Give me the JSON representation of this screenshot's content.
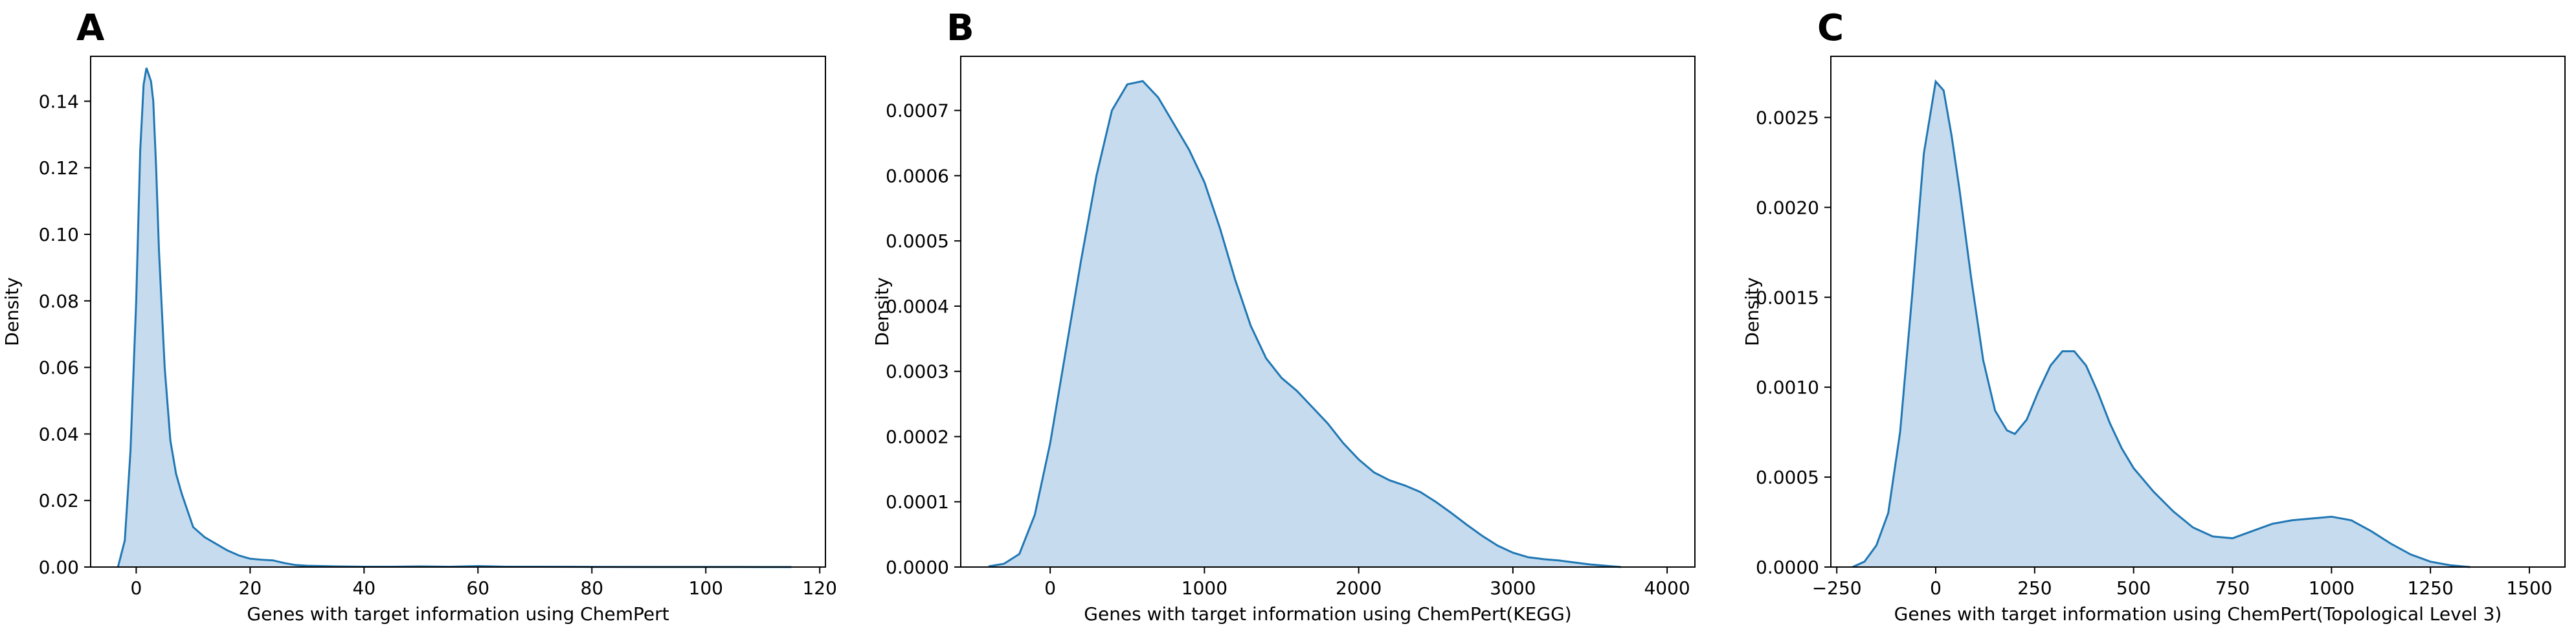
{
  "chart_data": [
    {
      "type": "area",
      "panel_label": "A",
      "title": "",
      "xlabel": "Genes with target information using ChemPert",
      "ylabel": "Density",
      "xlim": [
        -8,
        121
      ],
      "ylim": [
        0,
        0.1535
      ],
      "xticks": [
        0,
        20,
        40,
        60,
        80,
        100,
        120
      ],
      "xtick_labels": [
        "0",
        "20",
        "40",
        "60",
        "80",
        "100",
        "120"
      ],
      "yticks": [
        0,
        0.02,
        0.04,
        0.06,
        0.08,
        0.1,
        0.12,
        0.14
      ],
      "ytick_labels": [
        "0.00",
        "0.02",
        "0.04",
        "0.06",
        "0.08",
        "0.10",
        "0.12",
        "0.14"
      ],
      "grid": false,
      "legend": "none",
      "line_color": "#1f77b4",
      "fill_color": "#c6dbed",
      "series": [
        {
          "x": [
            -3.2,
            -2,
            -1,
            0,
            0.7,
            1.3,
            1.8,
            2.2,
            2.6,
            3,
            3.5,
            4,
            5,
            6,
            7,
            8,
            10,
            12,
            14,
            16,
            18,
            20,
            22,
            24,
            26,
            28,
            30,
            35,
            40,
            45,
            50,
            55,
            60,
            65,
            70,
            80,
            90,
            100,
            110,
            115
          ],
          "y": [
            0,
            0.008,
            0.035,
            0.08,
            0.125,
            0.145,
            0.15,
            0.148,
            0.146,
            0.14,
            0.12,
            0.095,
            0.06,
            0.038,
            0.028,
            0.022,
            0.012,
            0.009,
            0.007,
            0.005,
            0.0035,
            0.0025,
            0.0022,
            0.002,
            0.0012,
            0.0006,
            0.0004,
            0.0002,
            0.0001,
            0.0001,
            0.0002,
            0.0001,
            0.0003,
            0.0001,
            0.0001,
            5e-05,
            3e-05,
            2e-05,
            1e-05,
            0
          ]
        }
      ]
    },
    {
      "type": "area",
      "panel_label": "B",
      "title": "",
      "xlabel": "Genes with target information using ChemPert(KEGG)",
      "ylabel": "Density",
      "xlim": [
        -580,
        4180
      ],
      "ylim": [
        0,
        0.000783
      ],
      "xticks": [
        0,
        1000,
        2000,
        3000,
        4000
      ],
      "xtick_labels": [
        "0",
        "1000",
        "2000",
        "3000",
        "4000"
      ],
      "yticks": [
        0,
        0.0001,
        0.0002,
        0.0003,
        0.0004,
        0.0005,
        0.0006,
        0.0007
      ],
      "ytick_labels": [
        "0.0000",
        "0.0001",
        "0.0002",
        "0.0003",
        "0.0004",
        "0.0005",
        "0.0006",
        "0.0007"
      ],
      "grid": false,
      "legend": "none",
      "line_color": "#1f77b4",
      "fill_color": "#c6dbed",
      "series": [
        {
          "x": [
            -400,
            -300,
            -200,
            -100,
            0,
            100,
            200,
            300,
            400,
            500,
            600,
            700,
            800,
            900,
            1000,
            1100,
            1200,
            1300,
            1400,
            1500,
            1600,
            1700,
            1800,
            1900,
            2000,
            2100,
            2200,
            2300,
            2400,
            2500,
            2600,
            2700,
            2800,
            2900,
            3000,
            3100,
            3200,
            3300,
            3400,
            3500,
            3600,
            3700
          ],
          "y": [
            1e-06,
            5e-06,
            2e-05,
            8e-05,
            0.00019,
            0.00033,
            0.00047,
            0.0006,
            0.0007,
            0.00074,
            0.000745,
            0.00072,
            0.00068,
            0.00064,
            0.00059,
            0.00052,
            0.00044,
            0.00037,
            0.00032,
            0.00029,
            0.00027,
            0.000245,
            0.00022,
            0.00019,
            0.000165,
            0.000145,
            0.000133,
            0.000125,
            0.000115,
            0.0001,
            8.3e-05,
            6.5e-05,
            4.8e-05,
            3.3e-05,
            2.2e-05,
            1.5e-05,
            1.2e-05,
            1e-05,
            7e-06,
            4e-06,
            2e-06,
            0
          ]
        }
      ]
    },
    {
      "type": "area",
      "panel_label": "C",
      "title": "",
      "xlabel": "Genes with target information using ChemPert(Topological Level 3)",
      "ylabel": "Density",
      "xlim": [
        -265,
        1590
      ],
      "ylim": [
        0,
        0.00284
      ],
      "xticks": [
        -250,
        0,
        250,
        500,
        750,
        1000,
        1250,
        1500
      ],
      "xtick_labels": [
        "−250",
        "0",
        "250",
        "500",
        "750",
        "1000",
        "1250",
        "1500"
      ],
      "yticks": [
        0,
        0.0005,
        0.001,
        0.0015,
        0.002,
        0.0025
      ],
      "ytick_labels": [
        "0.0000",
        "0.0005",
        "0.0010",
        "0.0015",
        "0.0020",
        "0.0025"
      ],
      "grid": false,
      "legend": "none",
      "line_color": "#1f77b4",
      "fill_color": "#c6dbed",
      "series": [
        {
          "x": [
            -210,
            -180,
            -150,
            -120,
            -90,
            -60,
            -30,
            0,
            20,
            40,
            60,
            90,
            120,
            150,
            180,
            200,
            230,
            260,
            290,
            320,
            350,
            380,
            410,
            440,
            470,
            500,
            550,
            600,
            650,
            700,
            750,
            800,
            850,
            900,
            950,
            1000,
            1050,
            1100,
            1150,
            1200,
            1250,
            1300,
            1350
          ],
          "y": [
            0,
            3e-05,
            0.00012,
            0.0003,
            0.00075,
            0.0015,
            0.0023,
            0.0027,
            0.00265,
            0.0024,
            0.0021,
            0.0016,
            0.00115,
            0.00087,
            0.00076,
            0.00074,
            0.00082,
            0.00098,
            0.00112,
            0.0012,
            0.0012,
            0.00112,
            0.00097,
            0.0008,
            0.00066,
            0.00055,
            0.00042,
            0.00031,
            0.00022,
            0.00017,
            0.00016,
            0.0002,
            0.00024,
            0.00026,
            0.00027,
            0.00028,
            0.00026,
            0.0002,
            0.00013,
            7e-05,
            3e-05,
            1e-05,
            0
          ]
        }
      ]
    }
  ]
}
